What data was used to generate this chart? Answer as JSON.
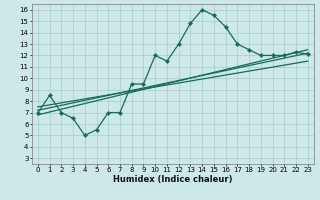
{
  "xlabel": "Humidex (Indice chaleur)",
  "xlim": [
    -0.5,
    23.5
  ],
  "ylim": [
    2.5,
    16.5
  ],
  "xticks": [
    0,
    1,
    2,
    3,
    4,
    5,
    6,
    7,
    8,
    9,
    10,
    11,
    12,
    13,
    14,
    15,
    16,
    17,
    18,
    19,
    20,
    21,
    22,
    23
  ],
  "yticks": [
    3,
    4,
    5,
    6,
    7,
    8,
    9,
    10,
    11,
    12,
    13,
    14,
    15,
    16
  ],
  "bg_color": "#cde8e8",
  "grid_color": "#aacccc",
  "line_color": "#1a6b5a",
  "line_width": 0.9,
  "marker": "D",
  "marker_size": 2.2,
  "wiggly_x": [
    0,
    1,
    2,
    3,
    4,
    5,
    6,
    7,
    8,
    9,
    10,
    11,
    12,
    13,
    14,
    15,
    16,
    17,
    18,
    19,
    20,
    21,
    22,
    23
  ],
  "wiggly_y": [
    7,
    8.5,
    7,
    6.5,
    5,
    5.5,
    7,
    7,
    9.5,
    9.5,
    12,
    11.5,
    13,
    14.8,
    16,
    15.5,
    14.5,
    13,
    12.5,
    12,
    12,
    12,
    12.3,
    12.1
  ],
  "straight_lines": [
    {
      "x": [
        0,
        23
      ],
      "y": [
        6.8,
        12.5
      ]
    },
    {
      "x": [
        0,
        23
      ],
      "y": [
        7.2,
        12.2
      ]
    },
    {
      "x": [
        0,
        23
      ],
      "y": [
        7.5,
        11.5
      ]
    }
  ]
}
